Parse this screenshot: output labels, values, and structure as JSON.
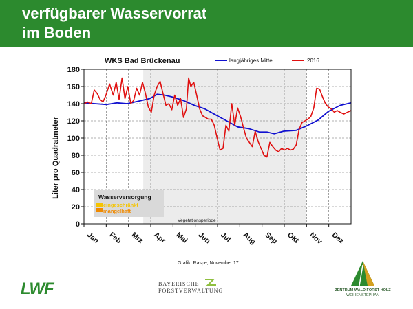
{
  "header": {
    "line1": "verfügbarer Wasservorrat",
    "line2": "im Boden"
  },
  "chart_data": {
    "type": "line",
    "title": "WKS Bad Brückenau",
    "ylabel": "Liter pro Quadratmeter",
    "xlabel": "",
    "ylim": [
      0,
      180
    ],
    "yticks": [
      0,
      20,
      40,
      60,
      80,
      100,
      120,
      140,
      160,
      180
    ],
    "xlim": [
      0,
      365
    ],
    "months": [
      "Jan",
      "Feb",
      "Mrz",
      "Apr",
      "Mai",
      "Jun",
      "Jul",
      "Aug",
      "Sep",
      "Okt",
      "Nov",
      "Dez"
    ],
    "grid": true,
    "legend_position": "top",
    "shaded_region": {
      "label": "Vegetationsperiode",
      "from_day": 81,
      "to_day": 304
    },
    "series": [
      {
        "name": "langjähriges Mittel",
        "color": "#1010d0",
        "x": [
          0,
          15,
          31,
          45,
          59,
          75,
          90,
          100,
          110,
          120,
          135,
          151,
          165,
          180,
          195,
          210,
          225,
          240,
          250,
          260,
          273,
          290,
          304,
          320,
          334,
          350,
          365
        ],
        "y": [
          141,
          140,
          139,
          141,
          140,
          143,
          146,
          151,
          150,
          148,
          144,
          138,
          134,
          127,
          120,
          113,
          111,
          107,
          107,
          105,
          108,
          109,
          114,
          121,
          131,
          138,
          141
        ]
      },
      {
        "name": "2016",
        "color": "#e01010",
        "x": [
          0,
          5,
          10,
          14,
          18,
          22,
          26,
          30,
          35,
          40,
          44,
          48,
          52,
          56,
          60,
          64,
          68,
          72,
          76,
          80,
          84,
          88,
          92,
          96,
          100,
          104,
          108,
          112,
          116,
          120,
          124,
          128,
          132,
          136,
          140,
          143,
          146,
          150,
          154,
          158,
          162,
          166,
          170,
          174,
          178,
          182,
          186,
          190,
          194,
          198,
          202,
          206,
          210,
          214,
          218,
          222,
          226,
          230,
          234,
          238,
          242,
          246,
          250,
          254,
          258,
          262,
          266,
          270,
          274,
          278,
          282,
          286,
          290,
          294,
          298,
          302,
          306,
          310,
          314,
          318,
          322,
          326,
          330,
          334,
          338,
          342,
          346,
          350,
          355,
          360,
          365
        ],
        "y": [
          140,
          142,
          140,
          156,
          152,
          145,
          142,
          150,
          163,
          150,
          165,
          145,
          170,
          146,
          160,
          140,
          144,
          158,
          150,
          165,
          152,
          136,
          130,
          150,
          160,
          166,
          152,
          138,
          140,
          133,
          150,
          138,
          146,
          124,
          134,
          170,
          160,
          165,
          150,
          134,
          126,
          124,
          122,
          122,
          115,
          100,
          86,
          88,
          115,
          108,
          140,
          115,
          135,
          125,
          112,
          100,
          95,
          90,
          108,
          96,
          88,
          80,
          78,
          95,
          90,
          86,
          84,
          88,
          86,
          88,
          86,
          87,
          92,
          110,
          118,
          120,
          122,
          125,
          135,
          158,
          157,
          148,
          140,
          136,
          134,
          130,
          132,
          130,
          128,
          130,
          132
        ]
      }
    ],
    "inset_legend": {
      "title": "Wasserversorgung",
      "items": [
        {
          "label": "eingeschränkt",
          "color": "#f5c400"
        },
        {
          "label": "mangelhaft",
          "color": "#f08a00"
        }
      ]
    }
  },
  "footer": {
    "credit": "Grafik: Raspe, November 17",
    "lwf": "LWF",
    "bayern_line1": "BAYERISCHE",
    "bayern_line2": "FORSTVERWALTUNG",
    "zwfh_line1": "ZENTRUM WALD FORST HOLZ",
    "zwfh_line2": "WEIHENSTEPHAN"
  }
}
